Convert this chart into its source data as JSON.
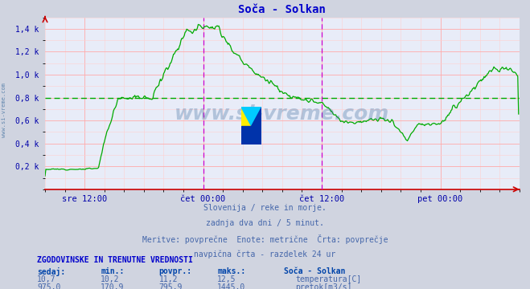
{
  "title": "Soča - Solkan",
  "title_color": "#0000cc",
  "bg_color": "#d0d4e0",
  "plot_bg_color": "#e8ecf8",
  "grid_color_major": "#ffaaaa",
  "grid_color_minor": "#ffd0d0",
  "line_color": "#00aa00",
  "avg_line_color": "#00aa00",
  "vline_color": "#cc00cc",
  "axis_color": "#cc0000",
  "tick_color": "#0000aa",
  "ylabel_ticks": [
    "0,2 k",
    "0,4 k",
    "0,6 k",
    "0,8 k",
    "1,0 k",
    "1,2 k",
    "1,4 k"
  ],
  "ylabel_values": [
    200,
    400,
    600,
    800,
    1000,
    1200,
    1400
  ],
  "ylim": [
    0,
    1500
  ],
  "n": 576,
  "x_tick_positions": [
    48,
    192,
    336,
    480
  ],
  "x_tick_labels": [
    "sre 12:00",
    "čet 00:00",
    "čet 12:00",
    "pet 00:00"
  ],
  "vline_positions": [
    192,
    336
  ],
  "avg_value": 795.9,
  "subtitle_lines": [
    "Slovenija / reke in morje.",
    "zadnja dva dni / 5 minut.",
    "Meritve: povprečne  Enote: metrične  Črta: povprečje",
    "navpična črta - razdelek 24 ur"
  ],
  "subtitle_color": "#4466aa",
  "table_header": "ZGODOVINSKE IN TRENUTNE VREDNOSTI",
  "table_header_color": "#0000cc",
  "table_cols": [
    "sedaj:",
    "min.:",
    "povpr.:",
    "maks.:",
    "Soča - Solkan"
  ],
  "table_col_color": "#0044aa",
  "table_row1": [
    "10,7",
    "10,2",
    "11,2",
    "12,5",
    "temperatura[C]"
  ],
  "table_row2": [
    "975,0",
    "170,9",
    "795,9",
    "1445,0",
    "pretok[m3/s]"
  ],
  "table_data_color": "#4466aa",
  "temp_color": "#cc0000",
  "flow_color": "#00aa00",
  "watermark_text": "www.si-vreme.com",
  "watermark_color": "#336699",
  "watermark_alpha": 0.3,
  "side_watermark": "www.si-vreme.com",
  "side_watermark_color": "#336699"
}
